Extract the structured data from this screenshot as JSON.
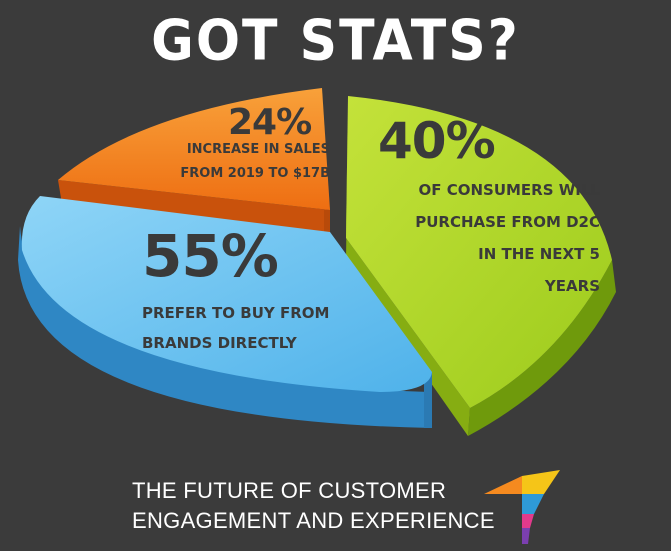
{
  "title": "GOT STATS?",
  "stats": {
    "orange": {
      "percent": "24%",
      "line1": "INCREASE IN SALES",
      "line2": "FROM 2019 TO $17B"
    },
    "green": {
      "percent": "40%",
      "line1": "OF CONSUMERS WILL",
      "line2": "PURCHASE FROM D2C",
      "line3": "IN THE NEXT 5",
      "line4": "YEARS"
    },
    "blue": {
      "percent": "55%",
      "line1": "PREFER TO BUY FROM",
      "line2": "BRANDS DIRECTLY"
    }
  },
  "footer": {
    "line1": "THE FUTURE OF CUSTOMER",
    "line2": "ENGAGEMENT AND EXPERIENCE"
  },
  "colors": {
    "background": "#3b3b3b",
    "orange": "#f58a1f",
    "green": "#a6d320",
    "blue": "#5cbcef"
  }
}
